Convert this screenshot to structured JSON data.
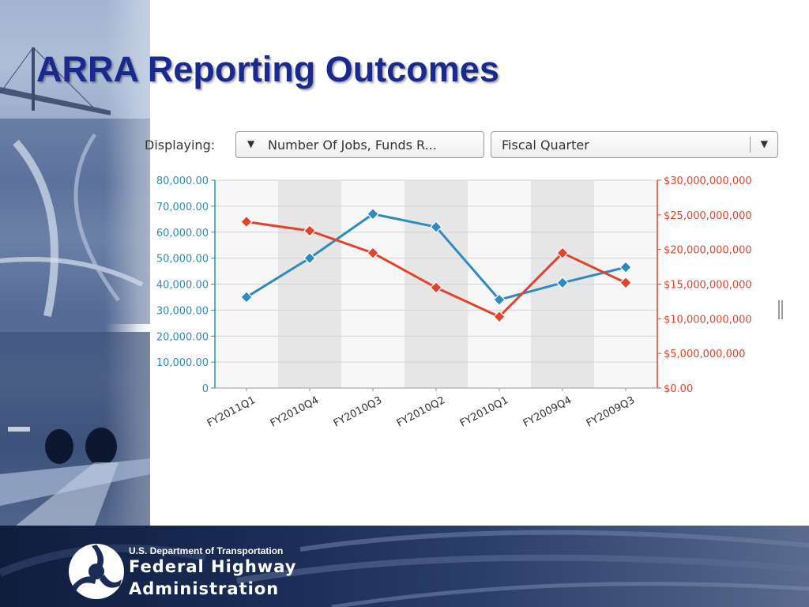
{
  "slide": {
    "title": "ARRA Reporting Outcomes"
  },
  "controls": {
    "displaying_label": "Displaying:",
    "metric_selected": "Number Of Jobs, Funds R...",
    "period_selected": "Fiscal Quarter"
  },
  "footer": {
    "department": "U.S. Department of Transportation",
    "agency_line1": "Federal Highway",
    "agency_line2": "Administration"
  },
  "colors": {
    "title": "#1a2a8c",
    "jobs_series": "#2e8bc0",
    "funds_series": "#e0442c",
    "footer_bg": "#1b2d57"
  },
  "icons": {
    "metric_dropdown_arrow": "triangle-down-icon",
    "period_dropdown_arrow": "triangle-down-icon",
    "logo": "fhwa-logo"
  },
  "chart_data": {
    "type": "line",
    "title": "",
    "categories": [
      "FY2011Q1",
      "FY2010Q4",
      "FY2010Q3",
      "FY2010Q2",
      "FY2010Q1",
      "FY2009Q4",
      "FY2009Q3"
    ],
    "series": [
      {
        "axis": "left",
        "color": "#2e8bc0",
        "values": [
          35000,
          50000,
          67000,
          62000,
          34000,
          40500,
          46500
        ]
      },
      {
        "axis": "right",
        "color": "#e0442c",
        "values": [
          24000000000,
          22700000000,
          19500000000,
          14500000000,
          10300000000,
          19500000000,
          15200000000
        ]
      }
    ],
    "y_left": {
      "ylim": [
        0,
        80000
      ],
      "ticks": [
        0,
        10000,
        20000,
        30000,
        40000,
        50000,
        60000,
        70000,
        80000
      ],
      "tick_labels": [
        "0",
        "10,000.00",
        "20,000.00",
        "30,000.00",
        "40,000.00",
        "50,000.00",
        "60,000.00",
        "70,000.00",
        "80,000.00"
      ],
      "color": "#2e8bc0"
    },
    "y_right": {
      "ylim": [
        0,
        30000000000
      ],
      "ticks": [
        0,
        5000000000,
        10000000000,
        15000000000,
        20000000000,
        25000000000,
        30000000000
      ],
      "tick_labels": [
        "$0.00",
        "$5,000,000,000",
        "$10,000,000,000",
        "$15,000,000,000",
        "$20,000,000,000",
        "$25,000,000,000",
        "$30,000,000,000"
      ],
      "color": "#e0442c"
    },
    "xlabel": "",
    "grid": true,
    "alternating_bands": true
  }
}
